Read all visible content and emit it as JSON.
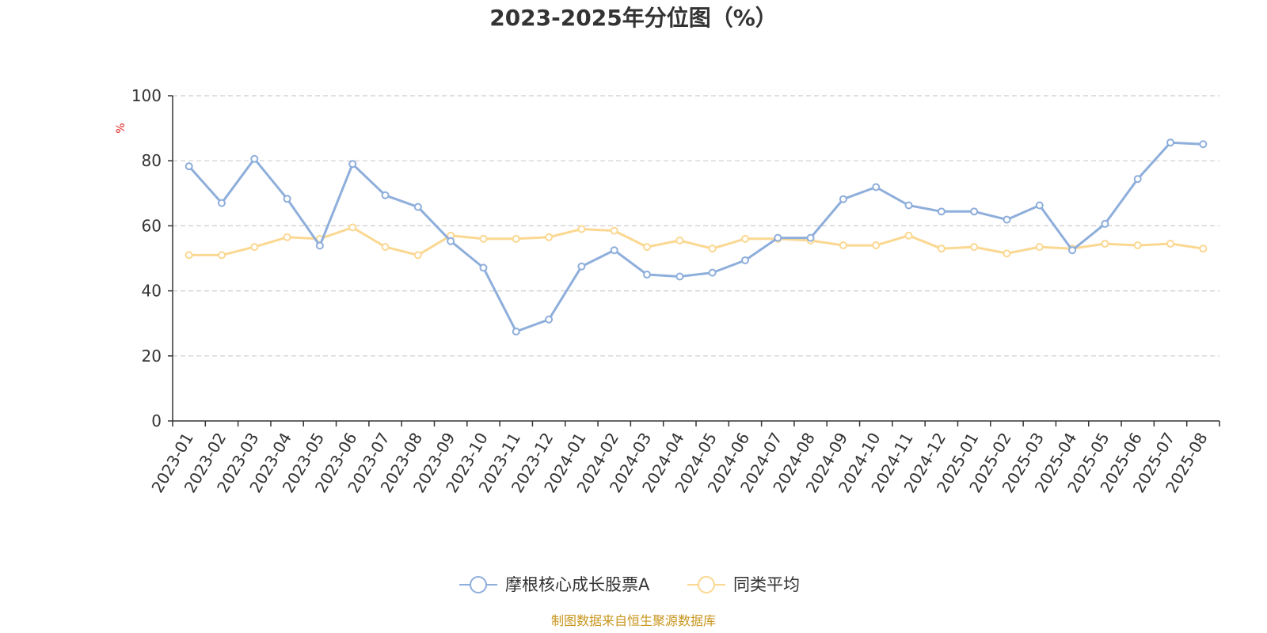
{
  "chart_data": {
    "type": "line",
    "title": "2023-2025年分位图（%）",
    "ylabel": "%",
    "ylim": [
      0,
      100
    ],
    "yticks": [
      "0",
      "20",
      "40",
      "60",
      "80",
      "100"
    ],
    "grid": true,
    "legend_position": "bottom",
    "categories": [
      "2023-01",
      "2023-02",
      "2023-03",
      "2023-04",
      "2023-05",
      "2023-06",
      "2023-07",
      "2023-08",
      "2023-09",
      "2023-10",
      "2023-11",
      "2023-12",
      "2024-01",
      "2024-02",
      "2024-03",
      "2024-04",
      "2024-05",
      "2024-06",
      "2024-07",
      "2024-08",
      "2024-09",
      "2024-10",
      "2024-11",
      "2024-12",
      "2025-01",
      "2025-02",
      "2025-03",
      "2025-04",
      "2025-05",
      "2025-06",
      "2025-07",
      "2025-08"
    ],
    "series": [
      {
        "name": "摩根核心成长股票A",
        "color": "#8eaedb",
        "values": [
          78.3,
          67,
          80.6,
          68.3,
          53.9,
          79,
          69.4,
          65.8,
          55.3,
          47.1,
          27.5,
          31.2,
          47.5,
          52.5,
          45,
          44.4,
          45.6,
          49.4,
          56.3,
          56.3,
          68.2,
          71.9,
          66.3,
          64.4,
          64.4,
          61.9,
          66.3,
          52.5,
          60.6,
          74.4,
          85.6,
          85.1
        ]
      },
      {
        "name": "同类平均",
        "color": "#fbd892",
        "values": [
          51,
          51,
          53.5,
          56.5,
          56,
          59.5,
          53.5,
          51,
          57,
          56,
          56,
          56.5,
          59,
          58.5,
          53.5,
          55.5,
          53,
          56,
          56,
          55.5,
          54,
          54,
          57,
          53,
          53.5,
          51.5,
          53.5,
          53,
          54.5,
          54,
          54.5,
          53
        ]
      }
    ]
  },
  "legend": {
    "items": [
      {
        "label": "摩根核心成长股票A",
        "color": "#8eaedb"
      },
      {
        "label": "同类平均",
        "color": "#fbd892"
      }
    ]
  },
  "source": {
    "text": "制图数据来自恒生聚源数据库",
    "color": "#c8961e"
  },
  "unit_color": "#e02020"
}
